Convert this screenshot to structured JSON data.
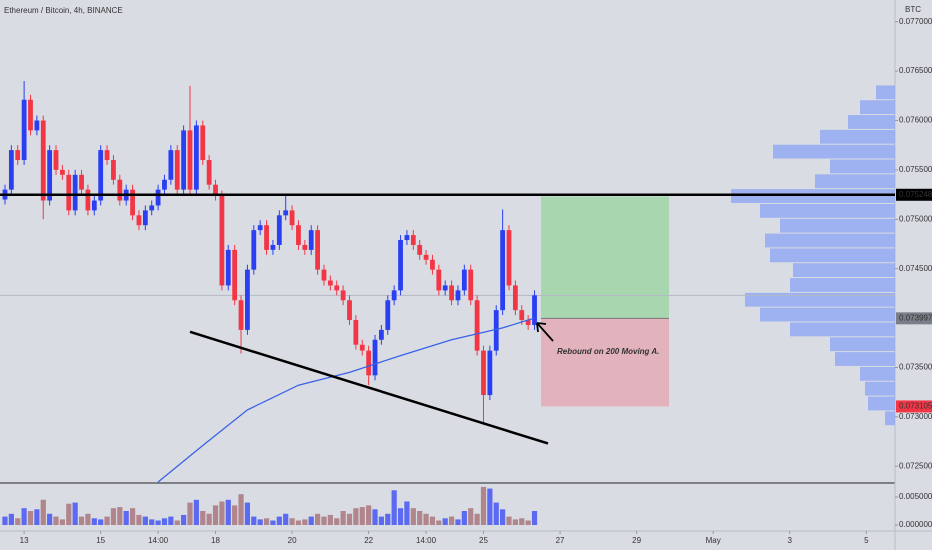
{
  "chart_data": {
    "type": "candlestick",
    "title": "Ethereum / Bitcoin, 4h, BINANCE",
    "currency": "BTC",
    "annotation": "Rebound on 200 Moving A.",
    "bull_color": "#2a3ff2",
    "bear_color": "#f23645",
    "xlim": [
      -0.78,
      139.5
    ],
    "xticks": [
      {
        "value": 3,
        "label": "13"
      },
      {
        "value": 15,
        "label": "15"
      },
      {
        "value": 24,
        "label": "14:00"
      },
      {
        "value": 33,
        "label": "18"
      },
      {
        "value": 45,
        "label": "20"
      },
      {
        "value": 57,
        "label": "22"
      },
      {
        "value": 66,
        "label": "14:00"
      },
      {
        "value": 75,
        "label": "25"
      },
      {
        "value": 87,
        "label": "27"
      },
      {
        "value": 99,
        "label": "29"
      },
      {
        "value": 111,
        "label": "May"
      },
      {
        "value": 123,
        "label": "3"
      },
      {
        "value": 135,
        "label": "5"
      }
    ],
    "ylim": [
      0.07234,
      0.07722
    ],
    "yticks": [
      {
        "value": 0.077,
        "label": "0.077000"
      },
      {
        "value": 0.0765,
        "label": "0.076500"
      },
      {
        "value": 0.076,
        "label": "0.076000"
      },
      {
        "value": 0.0755,
        "label": "0.075500"
      },
      {
        "value": 0.075,
        "label": "0.075000"
      },
      {
        "value": 0.0745,
        "label": "0.074500"
      },
      {
        "value": 0.0735,
        "label": "0.073500"
      },
      {
        "value": 0.073,
        "label": "0.073000"
      },
      {
        "value": 0.0725,
        "label": "0.072500"
      }
    ],
    "open": [
      0.0752,
      0.0753,
      0.0757,
      0.0756,
      0.07621,
      0.0759,
      0.076,
      0.07519,
      0.0757,
      0.0755,
      0.07545,
      0.07509,
      0.07545,
      0.0753,
      0.07509,
      0.07519,
      0.0757,
      0.0756,
      0.0754,
      0.07519,
      0.0753,
      0.07504,
      0.07494,
      0.07509,
      0.07514,
      0.0753,
      0.0754,
      0.0757,
      0.0753,
      0.0759,
      0.0753,
      0.07595,
      0.0756,
      0.07535,
      0.07524,
      0.07433,
      0.07469,
      0.07418,
      0.07388,
      0.07449,
      0.07489,
      0.07494,
      0.07469,
      0.07474,
      0.07504,
      0.07509,
      0.07494,
      0.07474,
      0.07469,
      0.07489,
      0.07449,
      0.07438,
      0.07433,
      0.07428,
      0.07418,
      0.07398,
      0.07373,
      0.07367,
      0.07342,
      0.07378,
      0.07388,
      0.07418,
      0.07428,
      0.07479,
      0.07484,
      0.07474,
      0.07464,
      0.07459,
      0.07449,
      0.07428,
      0.07433,
      0.07418,
      0.07428,
      0.07449,
      0.07418,
      0.07367,
      0.07322,
      0.07367,
      0.07408,
      0.07489,
      0.07433,
      0.07408,
      0.07398,
      0.07393
    ],
    "close": [
      0.0753,
      0.0757,
      0.0756,
      0.07621,
      0.0759,
      0.076,
      0.07519,
      0.0757,
      0.0755,
      0.07545,
      0.07509,
      0.07545,
      0.0753,
      0.07509,
      0.07519,
      0.0757,
      0.0756,
      0.0754,
      0.07519,
      0.0753,
      0.07504,
      0.07494,
      0.07509,
      0.07514,
      0.0753,
      0.0754,
      0.0757,
      0.0753,
      0.0759,
      0.0753,
      0.07595,
      0.0756,
      0.07535,
      0.07524,
      0.07433,
      0.07469,
      0.07418,
      0.07388,
      0.07449,
      0.07489,
      0.07494,
      0.07469,
      0.07474,
      0.07504,
      0.07509,
      0.07494,
      0.07474,
      0.07469,
      0.07489,
      0.07449,
      0.07438,
      0.07433,
      0.07428,
      0.07418,
      0.07398,
      0.07373,
      0.07367,
      0.07342,
      0.07378,
      0.07388,
      0.07418,
      0.07428,
      0.07479,
      0.07484,
      0.07474,
      0.07464,
      0.07459,
      0.07449,
      0.07428,
      0.07433,
      0.07418,
      0.07428,
      0.07449,
      0.07418,
      0.07367,
      0.07322,
      0.07367,
      0.07408,
      0.07489,
      0.07433,
      0.07408,
      0.07398,
      0.07393,
      0.07423
    ],
    "high": [
      0.07535,
      0.07575,
      0.07575,
      0.0764,
      0.07626,
      0.07605,
      0.07605,
      0.07575,
      0.07575,
      0.07555,
      0.0755,
      0.0755,
      0.0755,
      0.07535,
      0.07524,
      0.07575,
      0.07575,
      0.07565,
      0.07545,
      0.07535,
      0.07535,
      0.07509,
      0.07514,
      0.07519,
      0.07535,
      0.07545,
      0.07575,
      0.07575,
      0.07595,
      0.07635,
      0.076,
      0.076,
      0.07565,
      0.0754,
      0.07529,
      0.07474,
      0.07474,
      0.07423,
      0.07454,
      0.07494,
      0.07499,
      0.07499,
      0.07479,
      0.07509,
      0.07525,
      0.07514,
      0.07499,
      0.07479,
      0.07494,
      0.07494,
      0.07454,
      0.07443,
      0.07438,
      0.07433,
      0.07423,
      0.07403,
      0.07378,
      0.07372,
      0.07383,
      0.07393,
      0.07423,
      0.07433,
      0.07484,
      0.07489,
      0.07489,
      0.07479,
      0.07469,
      0.07464,
      0.07454,
      0.07438,
      0.07438,
      0.07433,
      0.07454,
      0.07454,
      0.07423,
      0.07372,
      0.07372,
      0.07413,
      0.0751,
      0.07494,
      0.07438,
      0.07413,
      0.07403,
      0.07428
    ],
    "low": [
      0.07515,
      0.07525,
      0.07555,
      0.07555,
      0.07585,
      0.07585,
      0.075,
      0.07514,
      0.07545,
      0.0754,
      0.07504,
      0.07504,
      0.07525,
      0.07504,
      0.07504,
      0.07514,
      0.07555,
      0.07535,
      0.07514,
      0.07514,
      0.07499,
      0.07489,
      0.07489,
      0.07504,
      0.07509,
      0.07525,
      0.07535,
      0.07525,
      0.07525,
      0.07525,
      0.07525,
      0.07555,
      0.0753,
      0.07519,
      0.07428,
      0.07428,
      0.07413,
      0.07364,
      0.07383,
      0.07444,
      0.07484,
      0.07464,
      0.07464,
      0.07469,
      0.07499,
      0.07489,
      0.07469,
      0.07464,
      0.07464,
      0.07444,
      0.07433,
      0.07428,
      0.07423,
      0.07413,
      0.07393,
      0.07368,
      0.07362,
      0.07332,
      0.07337,
      0.07373,
      0.07383,
      0.07413,
      0.07423,
      0.07474,
      0.07469,
      0.07459,
      0.07454,
      0.07444,
      0.07423,
      0.07423,
      0.07413,
      0.07413,
      0.07423,
      0.07413,
      0.07362,
      0.07292,
      0.07317,
      0.07362,
      0.07403,
      0.07428,
      0.07403,
      0.07393,
      0.07388,
      0.07388
    ],
    "volume": [
      0.0015,
      0.002,
      0.0012,
      0.003,
      0.0025,
      0.0028,
      0.0045,
      0.002,
      0.0015,
      0.001,
      0.0038,
      0.004,
      0.0015,
      0.002,
      0.0012,
      0.001,
      0.0015,
      0.003,
      0.0032,
      0.0025,
      0.003,
      0.0018,
      0.0015,
      0.001,
      0.0008,
      0.0012,
      0.0015,
      0.0008,
      0.0018,
      0.004,
      0.0045,
      0.0025,
      0.002,
      0.0035,
      0.0042,
      0.0045,
      0.0035,
      0.0055,
      0.004,
      0.0015,
      0.001,
      0.0012,
      0.0008,
      0.0015,
      0.002,
      0.0012,
      0.0008,
      0.001,
      0.0015,
      0.002,
      0.0015,
      0.0018,
      0.0012,
      0.0025,
      0.002,
      0.003,
      0.0032,
      0.0035,
      0.0028,
      0.0015,
      0.002,
      0.0062,
      0.003,
      0.0042,
      0.003,
      0.0025,
      0.002,
      0.0015,
      0.0008,
      0.0012,
      0.0015,
      0.001,
      0.0025,
      0.003,
      0.002,
      0.0068,
      0.0065,
      0.004,
      0.0028,
      0.0015,
      0.001,
      0.0012,
      0.0008,
      0.0025
    ],
    "volume_bull_color": "#5b6af0",
    "volume_bear_color": "#b0858c",
    "volume_ylim": [
      0,
      0.00714
    ],
    "volume_yticks": [
      {
        "value": 0.005,
        "label": "0.005000"
      },
      {
        "value": 0,
        "label": "0.000000"
      }
    ],
    "ma": {
      "color": "#3a62e8",
      "x": [
        24,
        31,
        38,
        46,
        54,
        62,
        70,
        78,
        83
      ],
      "values": [
        0.07234,
        0.07271,
        0.07307,
        0.07332,
        0.07345,
        0.07362,
        0.07378,
        0.0739,
        0.074
      ]
    },
    "resistance": 0.075248,
    "support": [
      0.07386,
      0.07273
    ],
    "position": {
      "target": 0.07523,
      "entry": 0.073997,
      "stop": 0.073105
    },
    "volume_profile": {
      "color": "#8fa6f2",
      "bins": [
        0.07636,
        0.07621,
        0.07606,
        0.07591,
        0.07576,
        0.07561,
        0.07546,
        0.07531,
        0.07516,
        0.07501,
        0.07486,
        0.07471,
        0.07456,
        0.07441,
        0.07426,
        0.07411,
        0.07396,
        0.07381,
        0.07366,
        0.07351,
        0.07336,
        0.07321,
        0.07306,
        0.07291
      ],
      "values": [
        19,
        35,
        47,
        75,
        122,
        65,
        80,
        164,
        135,
        115,
        130,
        125,
        102,
        105,
        150,
        135,
        105,
        65,
        60,
        35,
        30,
        27,
        10
      ]
    }
  }
}
